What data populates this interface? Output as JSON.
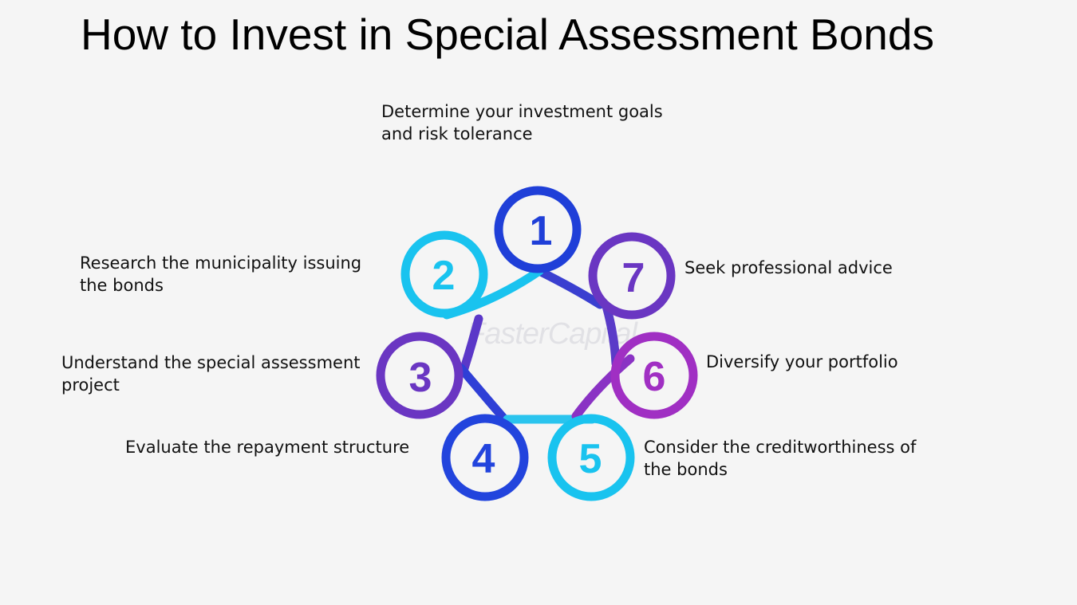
{
  "title": "How to Invest in Special Assessment Bonds",
  "watermark": "FasterCapital",
  "steps": [
    {
      "number": "1",
      "label": "Determine your investment goals\nand risk tolerance",
      "color": "#1f3fd8"
    },
    {
      "number": "2",
      "label": "Research the municipality issuing\nthe bonds",
      "color": "#19c3ef"
    },
    {
      "number": "3",
      "label": "Understand the special assessment\nproject",
      "color": "#6a36c2"
    },
    {
      "number": "4",
      "label": "Evaluate the repayment structure",
      "color": "#2244dd"
    },
    {
      "number": "5",
      "label": "Consider the creditworthiness of\nthe bonds",
      "color": "#19c3ef"
    },
    {
      "number": "6",
      "label": "Diversify your portfolio",
      "color": "#a02fc3"
    },
    {
      "number": "7",
      "label": "Seek professional advice",
      "color": "#6a36c2"
    }
  ]
}
